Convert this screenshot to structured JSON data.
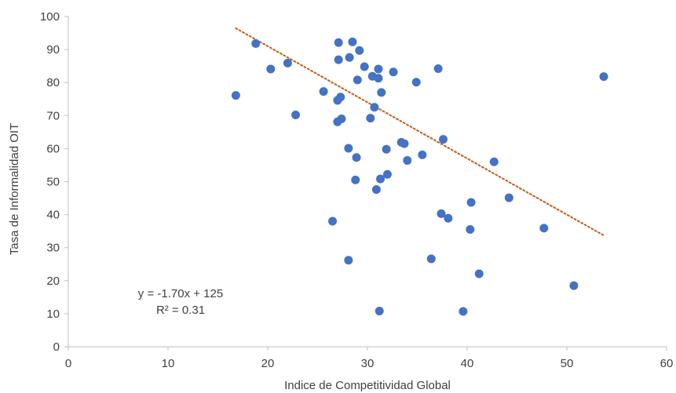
{
  "chart_data": {
    "type": "scatter",
    "xlabel": "Indice de Competitividad Global",
    "ylabel": "Tasa de Informalidad OIT",
    "xlim": [
      0,
      60
    ],
    "ylim": [
      0,
      100
    ],
    "x_ticks": [
      "0",
      "10",
      "20",
      "30",
      "40",
      "50",
      "60"
    ],
    "y_ticks": [
      "0",
      "10",
      "20",
      "30",
      "40",
      "50",
      "60",
      "70",
      "80",
      "90",
      "100"
    ],
    "grid": false,
    "legend": "none",
    "marker_color": "#4472C4",
    "trendline": {
      "type": "linear",
      "slope": -1.7,
      "intercept": 125,
      "x_range": [
        16.8,
        53.8
      ],
      "color": "#C55A11",
      "style": "dotted",
      "equation_label": "y = -1.70x + 125",
      "r2_label": "R² = 0.31"
    },
    "points": [
      [
        16.8,
        76.1
      ],
      [
        18.8,
        91.8
      ],
      [
        20.3,
        84.1
      ],
      [
        22.0,
        85.9
      ],
      [
        22.8,
        70.2
      ],
      [
        25.6,
        77.3
      ],
      [
        26.5,
        38.0
      ],
      [
        27.0,
        74.6
      ],
      [
        27.0,
        68.1
      ],
      [
        27.1,
        92.1
      ],
      [
        27.1,
        86.9
      ],
      [
        27.3,
        75.6
      ],
      [
        27.4,
        69.0
      ],
      [
        28.1,
        26.2
      ],
      [
        28.1,
        60.1
      ],
      [
        28.2,
        87.6
      ],
      [
        28.5,
        92.3
      ],
      [
        28.8,
        50.5
      ],
      [
        28.9,
        57.3
      ],
      [
        29.0,
        80.8
      ],
      [
        29.2,
        89.7
      ],
      [
        29.7,
        84.8
      ],
      [
        30.3,
        69.2
      ],
      [
        30.5,
        81.9
      ],
      [
        30.7,
        72.5
      ],
      [
        30.9,
        47.6
      ],
      [
        31.1,
        81.3
      ],
      [
        31.2,
        10.8
      ],
      [
        31.1,
        84.1
      ],
      [
        31.3,
        50.8
      ],
      [
        31.4,
        77.0
      ],
      [
        31.9,
        59.8
      ],
      [
        32.0,
        52.2
      ],
      [
        32.6,
        83.2
      ],
      [
        33.4,
        61.9
      ],
      [
        33.7,
        61.5
      ],
      [
        34.0,
        56.4
      ],
      [
        34.9,
        80.1
      ],
      [
        35.5,
        58.1
      ],
      [
        36.4,
        26.6
      ],
      [
        37.1,
        84.2
      ],
      [
        37.4,
        40.3
      ],
      [
        37.6,
        62.8
      ],
      [
        38.1,
        38.9
      ],
      [
        39.6,
        10.7
      ],
      [
        40.3,
        35.5
      ],
      [
        40.4,
        43.7
      ],
      [
        41.2,
        22.1
      ],
      [
        42.7,
        56.0
      ],
      [
        44.2,
        45.1
      ],
      [
        47.7,
        35.9
      ],
      [
        50.7,
        18.5
      ],
      [
        53.7,
        81.8
      ]
    ]
  }
}
